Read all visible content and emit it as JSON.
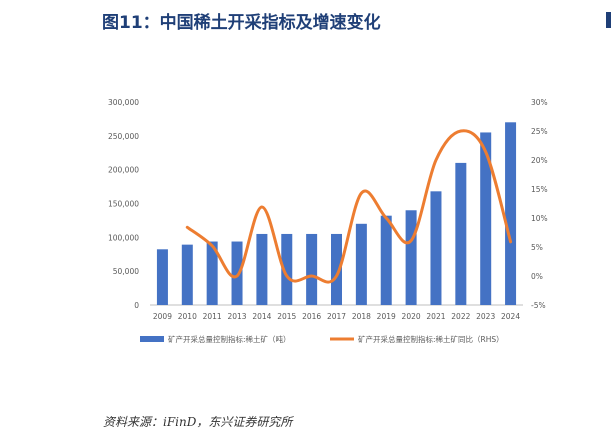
{
  "figure": {
    "title": "图11：中国稀土开采指标及增速变化",
    "source": "资料来源：iFinD，东兴证券研究所"
  },
  "chart_data": {
    "type": "bar",
    "categories": [
      "2009",
      "2010",
      "2011",
      "2013",
      "2014",
      "2015",
      "2016",
      "2017",
      "2018",
      "2019",
      "2020",
      "2021",
      "2022",
      "2023",
      "2024"
    ],
    "series": [
      {
        "name": "矿产开采总量控制指标:稀土矿（吨）",
        "type": "bar",
        "axis": "left",
        "color": "#4472c4",
        "values": [
          82320,
          89200,
          93800,
          93800,
          105000,
          105000,
          105000,
          105000,
          120000,
          132000,
          140000,
          168000,
          210000,
          255000,
          270000
        ]
      },
      {
        "name": "矿产开采总量控制指标:稀土矿同比（RHS）",
        "type": "line",
        "axis": "right",
        "color": "#ed7d31",
        "values": [
          null,
          8.4,
          5.2,
          0.0,
          11.9,
          0.0,
          0.0,
          0.0,
          14.3,
          10.0,
          6.1,
          20.0,
          25.0,
          21.4,
          5.9
        ]
      }
    ],
    "y_left": {
      "min": 0,
      "max": 300000,
      "ticks": [
        "0",
        "50,000",
        "100,000",
        "150,000",
        "200,000",
        "250,000",
        "300,000"
      ]
    },
    "y_right": {
      "min": -5,
      "max": 30,
      "ticks": [
        "-5%",
        "0%",
        "5%",
        "10%",
        "15%",
        "20%",
        "25%",
        "30%"
      ]
    },
    "grid": false,
    "legend_position": "bottom"
  }
}
